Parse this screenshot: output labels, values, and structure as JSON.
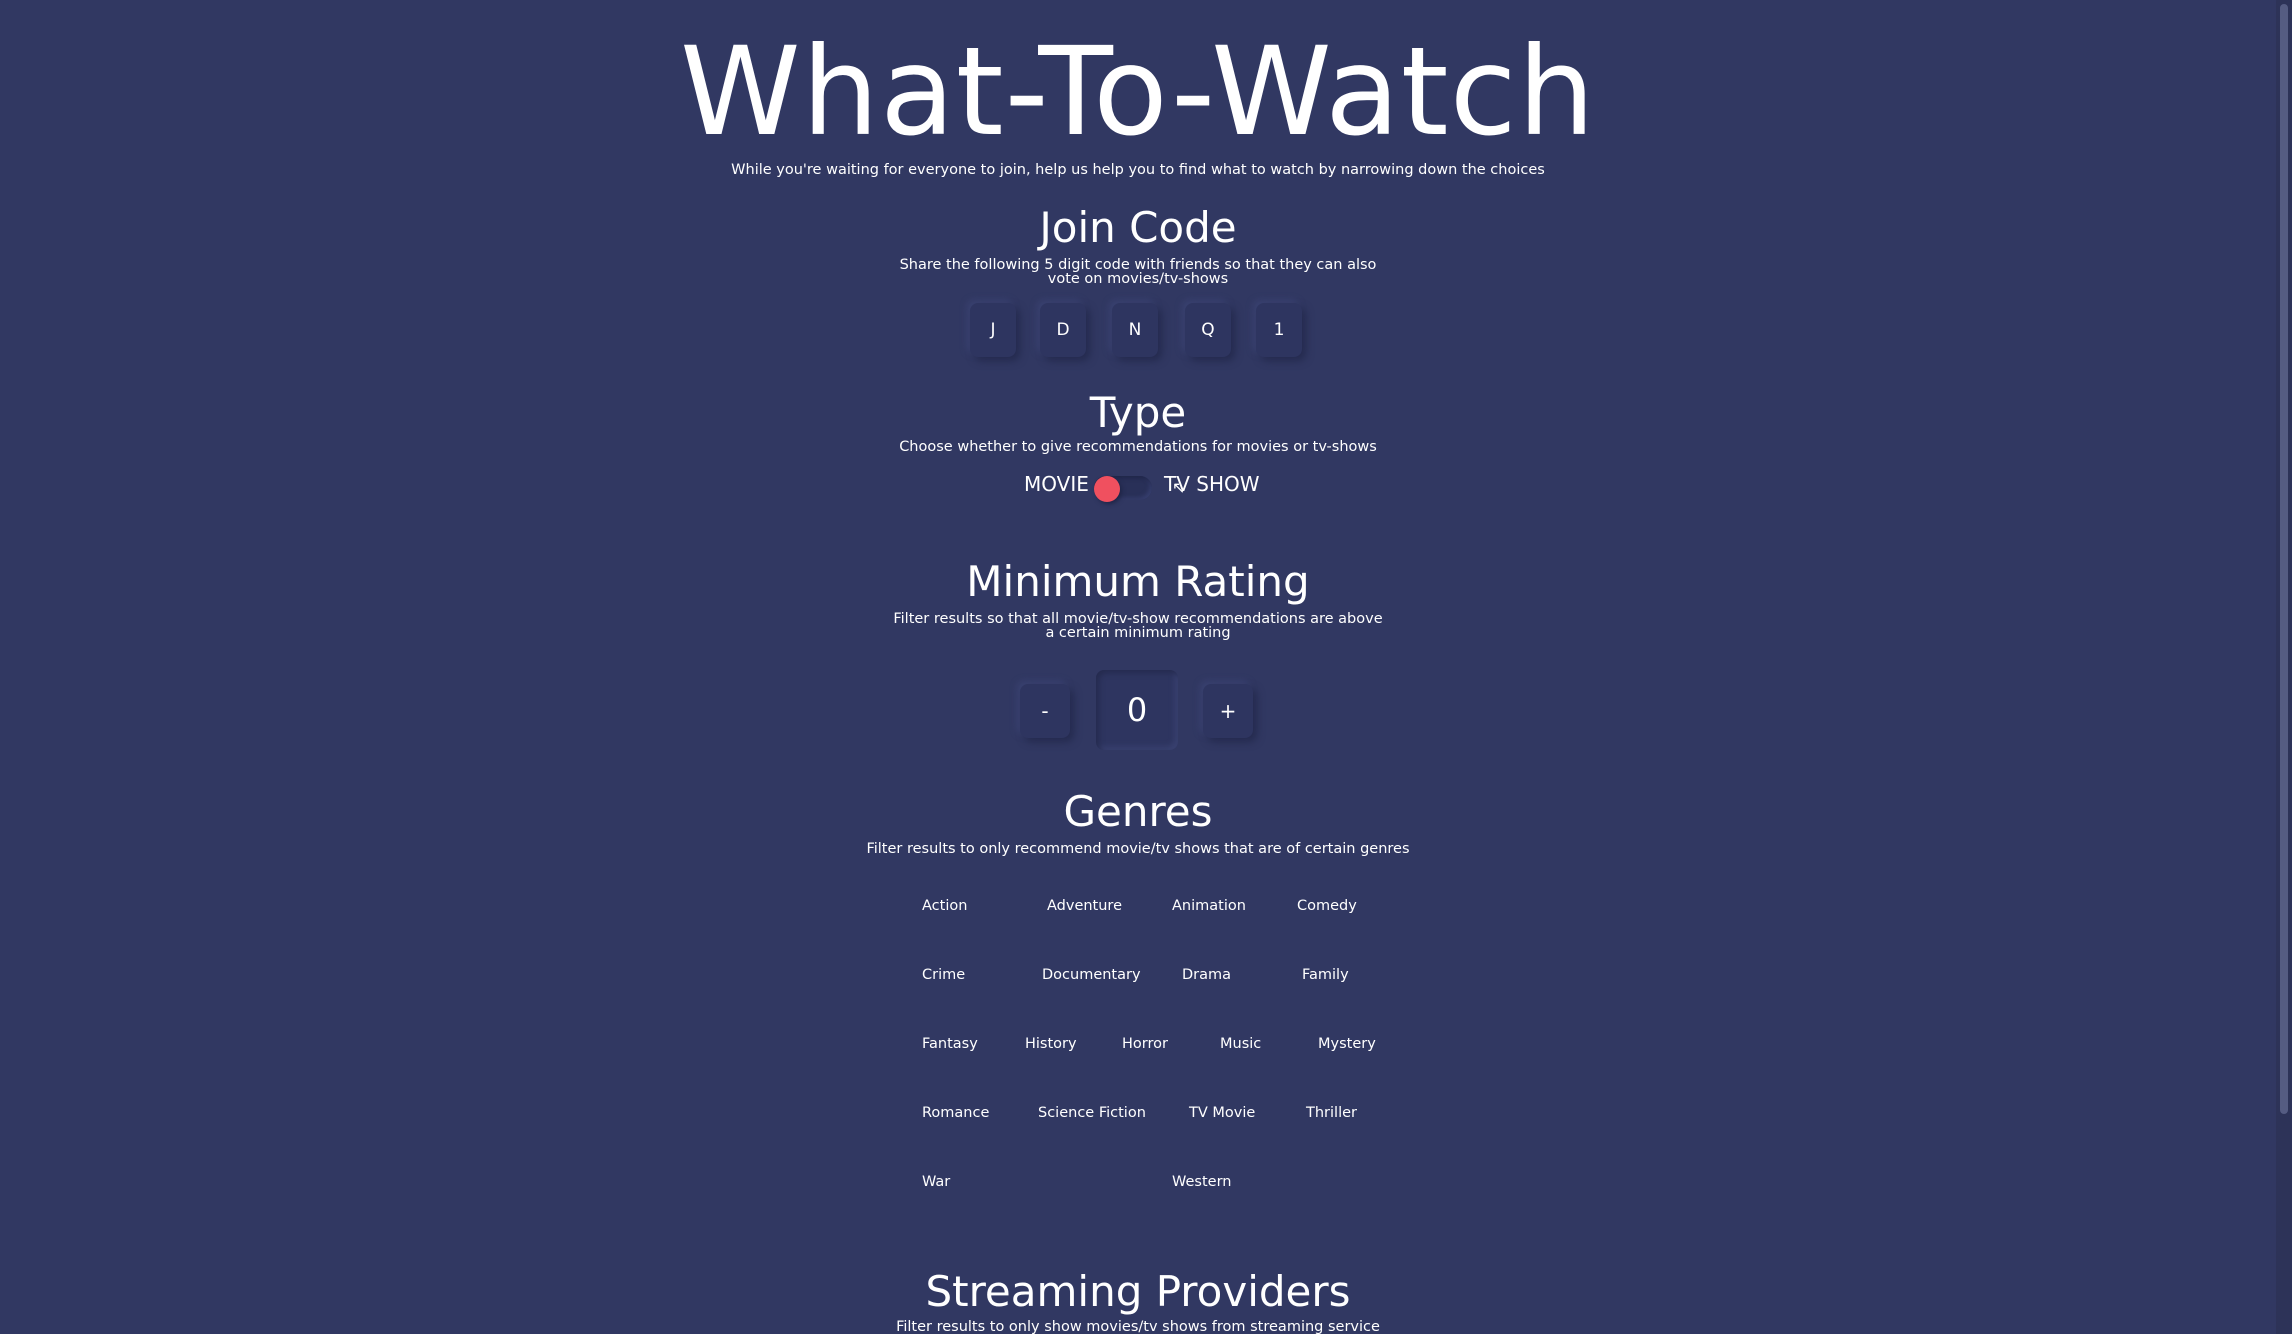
{
  "header": {
    "title": "What-To-Watch",
    "subtitle": "While you're waiting for everyone to join, help us help you to find what to watch by narrowing down the choices"
  },
  "join_code": {
    "title": "Join Code",
    "description": "Share the following 5 digit code with friends so that they can also vote on movies/tv-shows",
    "characters": [
      "J",
      "D",
      "N",
      "Q",
      "1"
    ]
  },
  "type": {
    "title": "Type",
    "description": "Choose whether to give recommendations for movies or tv-shows",
    "left_label": "MOVIE",
    "right_label": "TV SHOW",
    "selected": "MOVIE",
    "knob_color": "#f0505f"
  },
  "minimum_rating": {
    "title": "Minimum Rating",
    "description": "Filter results so that all movie/tv-show recommendations are above a certain minimum rating",
    "decrement_label": "-",
    "value": "0",
    "increment_label": "+"
  },
  "genres": {
    "title": "Genres",
    "description": "Filter results to only recommend movie/tv shows that are of certain genres",
    "items": [
      "Action",
      "Adventure",
      "Animation",
      "Comedy",
      "Crime",
      "Documentary",
      "Drama",
      "Family",
      "Fantasy",
      "History",
      "Horror",
      "Music",
      "Mystery",
      "Romance",
      "Science Fiction",
      "TV Movie",
      "Thriller",
      "War",
      "Western"
    ]
  },
  "streaming_providers": {
    "title": "Streaming Providers",
    "description": "Filter results to only show movies/tv shows from streaming service"
  },
  "colors": {
    "background": "#313862",
    "text": "#ffffff",
    "accent": "#f0505f"
  }
}
